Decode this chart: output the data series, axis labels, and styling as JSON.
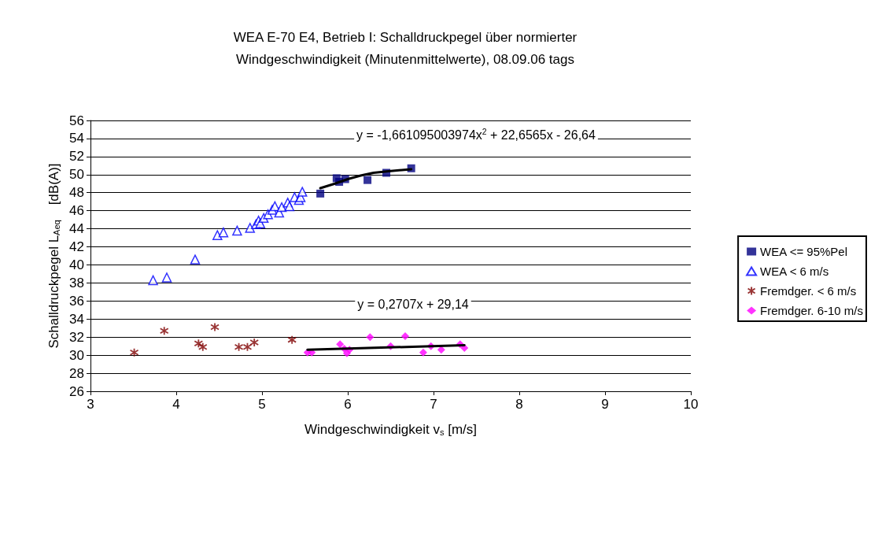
{
  "chart_data": {
    "type": "scatter",
    "title": "WEA E-70 E4, Betrieb I: Schalldruckpegel über normierter\nWindgeschwindigkeit (Minutenmittelwerte), 08.09.06 tags",
    "xlabel": "Windgeschwindigkeit v$_{s}$ [m/s]",
    "ylabel": "Schalldruckpegel L$_{Aeq}$    [dB(A)]",
    "xlim": [
      3,
      10
    ],
    "xticks": [
      3,
      4,
      5,
      6,
      7,
      8,
      9,
      10
    ],
    "ylim": [
      26,
      56
    ],
    "yticks": [
      26,
      28,
      30,
      32,
      34,
      36,
      38,
      40,
      42,
      44,
      46,
      48,
      50,
      52,
      54,
      56
    ],
    "grid": "y",
    "legend": "right",
    "series": [
      {
        "name": "WEA <= 95%Pel",
        "color": "#000080",
        "marker": "square",
        "x": [
          5.68,
          5.87,
          5.9,
          5.97,
          6.23,
          6.45,
          6.74
        ],
        "values": [
          47.9,
          49.6,
          49.2,
          49.5,
          49.4,
          50.2,
          50.7
        ]
      },
      {
        "name": "WEA < 6 m/s",
        "color": "#0000ff",
        "marker": "triangle",
        "x": [
          3.73,
          3.89,
          4.22,
          4.48,
          4.55,
          4.71,
          4.86,
          4.93,
          4.96,
          4.98,
          5.02,
          5.07,
          5.12,
          5.15,
          5.2,
          5.23,
          5.3,
          5.32,
          5.38,
          5.43,
          5.45,
          5.47
        ],
        "values": [
          38.3,
          38.6,
          40.6,
          43.3,
          43.6,
          43.8,
          44.1,
          44.5,
          44.9,
          44.6,
          45.2,
          45.6,
          46.1,
          46.5,
          45.8,
          46.4,
          46.9,
          46.5,
          47.5,
          47.2,
          47.5,
          48.1
        ]
      },
      {
        "name": "Fremdger. < 6 m/s",
        "color": "#800000",
        "marker": "cross",
        "x": [
          3.51,
          3.86,
          4.26,
          4.31,
          4.45,
          4.73,
          4.83,
          4.91,
          5.35
        ],
        "values": [
          30.3,
          32.7,
          31.3,
          30.9,
          33.1,
          30.9,
          30.9,
          31.4,
          31.7
        ]
      },
      {
        "name": "Fremdger. 6-10 m/s",
        "color": "#ff00ff",
        "marker": "diamond",
        "x": [
          5.53,
          5.58,
          5.91,
          5.96,
          5.99,
          6.02,
          6.26,
          6.5,
          6.67,
          6.88,
          6.97,
          7.09,
          7.31,
          7.36
        ],
        "values": [
          30.3,
          30.3,
          31.2,
          30.7,
          30.2,
          30.6,
          32.0,
          31.0,
          32.1,
          30.3,
          31.0,
          30.6,
          31.2,
          30.8
        ]
      },
      {
        "type": "line",
        "color": "#000000",
        "marker": "none",
        "x": [
          5.68,
          5.85,
          6.0,
          6.15,
          6.3,
          6.5,
          6.74
        ],
        "values": [
          48.5,
          49.0,
          49.5,
          49.9,
          50.2,
          50.4,
          50.6
        ]
      },
      {
        "type": "line",
        "color": "#000000",
        "marker": "none",
        "x": [
          5.53,
          7.36
        ],
        "values": [
          30.6,
          31.1
        ]
      }
    ],
    "annotations": [
      "y = -1,661095003974x$^{2}$ + 22,6565x - 26,64",
      "y = 0,2707x + 29,14"
    ]
  }
}
